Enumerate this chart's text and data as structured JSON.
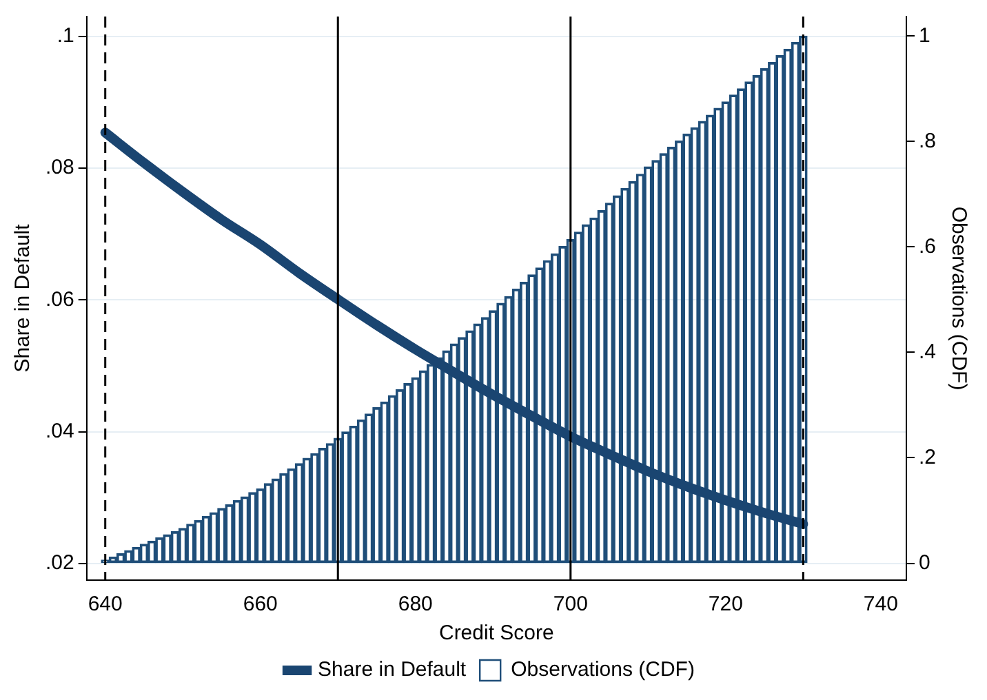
{
  "chart_data": {
    "type": "bar",
    "xlabel": "Credit Score",
    "ylabel": "Share in Default",
    "y2label": "Observations (CDF)",
    "x": [
      640,
      641,
      642,
      643,
      644,
      645,
      646,
      647,
      648,
      649,
      650,
      651,
      652,
      653,
      654,
      655,
      656,
      657,
      658,
      659,
      660,
      661,
      662,
      663,
      664,
      665,
      666,
      667,
      668,
      669,
      670,
      671,
      672,
      673,
      674,
      675,
      676,
      677,
      678,
      679,
      680,
      681,
      682,
      683,
      684,
      685,
      686,
      687,
      688,
      689,
      690,
      691,
      692,
      693,
      694,
      695,
      696,
      697,
      698,
      699,
      700,
      701,
      702,
      703,
      704,
      705,
      706,
      707,
      708,
      709,
      710,
      711,
      712,
      713,
      714,
      715,
      716,
      717,
      718,
      719,
      720,
      721,
      722,
      723,
      724,
      725,
      726,
      727,
      728,
      729,
      730
    ],
    "series": [
      {
        "name": "Share in Default",
        "type": "line",
        "color": "#1a4571",
        "x": [
          640,
          645,
          650,
          655,
          660,
          665,
          670,
          675,
          680,
          685,
          690,
          695,
          700,
          705,
          710,
          715,
          720,
          725,
          730
        ],
        "values": [
          0.0854,
          0.0808,
          0.0764,
          0.0722,
          0.0684,
          0.0641,
          0.0601,
          0.0562,
          0.0525,
          0.049,
          0.0456,
          0.0424,
          0.0393,
          0.0366,
          0.034,
          0.0317,
          0.0296,
          0.0277,
          0.026
        ]
      },
      {
        "name": "Observations (CDF)",
        "type": "bar",
        "axis": "y2",
        "color": "#1f4e79",
        "values": [
          0.006,
          0.012,
          0.018,
          0.024,
          0.03,
          0.036,
          0.042,
          0.048,
          0.054,
          0.06,
          0.066,
          0.074,
          0.081,
          0.089,
          0.096,
          0.104,
          0.111,
          0.119,
          0.126,
          0.134,
          0.141,
          0.151,
          0.16,
          0.17,
          0.179,
          0.189,
          0.199,
          0.208,
          0.218,
          0.227,
          0.237,
          0.249,
          0.26,
          0.272,
          0.283,
          0.295,
          0.306,
          0.318,
          0.329,
          0.341,
          0.352,
          0.365,
          0.377,
          0.39,
          0.403,
          0.416,
          0.428,
          0.441,
          0.454,
          0.466,
          0.479,
          0.493,
          0.506,
          0.52,
          0.533,
          0.547,
          0.56,
          0.574,
          0.587,
          0.601,
          0.614,
          0.628,
          0.642,
          0.655,
          0.669,
          0.683,
          0.697,
          0.711,
          0.724,
          0.738,
          0.752,
          0.764,
          0.777,
          0.789,
          0.801,
          0.814,
          0.826,
          0.838,
          0.85,
          0.863,
          0.875,
          0.888,
          0.9,
          0.913,
          0.925,
          0.938,
          0.95,
          0.963,
          0.975,
          0.988,
          1.0
        ]
      }
    ],
    "xlim": [
      637.6,
      743.3
    ],
    "xticks": [
      640,
      660,
      680,
      700,
      720,
      740
    ],
    "ylim": [
      0.0175,
      0.103
    ],
    "yticks": [
      {
        "value": 0.02,
        "label": ".02"
      },
      {
        "value": 0.04,
        "label": ".04"
      },
      {
        "value": 0.06,
        "label": ".06"
      },
      {
        "value": 0.08,
        "label": ".08"
      },
      {
        "value": 0.1,
        "label": ".1"
      }
    ],
    "y2lim": [
      -0.032,
      1.037
    ],
    "y2ticks": [
      0,
      {
        "value": 0.2,
        "label": ".2"
      },
      {
        "value": 0.4,
        "label": ".4"
      },
      {
        "value": 0.6,
        "label": ".6"
      },
      {
        "value": 0.8,
        "label": ".8"
      },
      1
    ],
    "ref_lines": [
      {
        "axis": "x",
        "value": 640,
        "line_style": "dashed",
        "color": "#000000"
      },
      {
        "axis": "x",
        "value": 670,
        "line_style": "solid",
        "color": "#000000"
      },
      {
        "axis": "x",
        "value": 700,
        "line_style": "solid",
        "color": "#000000"
      },
      {
        "axis": "x",
        "value": 730,
        "line_style": "dashed",
        "color": "#000000"
      }
    ],
    "grid": "y",
    "legend": "bottom"
  }
}
